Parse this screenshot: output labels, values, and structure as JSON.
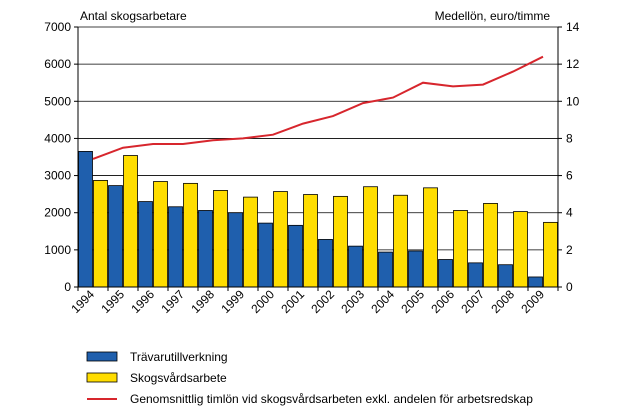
{
  "chart_data": {
    "type": "bar",
    "categories": [
      "1994",
      "1995",
      "1996",
      "1997",
      "1998",
      "1999",
      "2000",
      "2001",
      "2002",
      "2003",
      "2004",
      "2005",
      "2006",
      "2007",
      "2008",
      "2009"
    ],
    "series": [
      {
        "name": "Trävarutillverkning",
        "chart": "bar",
        "axis": "left",
        "color": "#1f5fad",
        "values": [
          3650,
          2730,
          2300,
          2160,
          2060,
          2000,
          1720,
          1660,
          1280,
          1100,
          940,
          970,
          740,
          650,
          600,
          270
        ]
      },
      {
        "name": "Skogsvårdsarbete",
        "chart": "bar",
        "axis": "left",
        "color": "#ffdd00",
        "values": [
          2870,
          3540,
          2840,
          2790,
          2600,
          2420,
          2570,
          2490,
          2440,
          2700,
          2470,
          2670,
          2060,
          2250,
          2030,
          1740
        ]
      },
      {
        "name": "Genomsnittlig timlön vid skogsvårdsarbeten exkl. andelen för arbetsredskap",
        "chart": "line",
        "axis": "right",
        "color": "#d7262d",
        "values": [
          6.9,
          7.5,
          7.7,
          7.7,
          7.9,
          8.0,
          8.2,
          8.8,
          9.2,
          9.9,
          10.2,
          11.0,
          10.8,
          10.9,
          11.6,
          12.4
        ]
      }
    ],
    "left_axis": {
      "label": "Antal skogsarbetare",
      "ylim": [
        0,
        7000
      ],
      "ticks": [
        "0",
        "1000",
        "2000",
        "3000",
        "4000",
        "5000",
        "6000",
        "7000"
      ]
    },
    "right_axis": {
      "label": "Medellön, euro/timme",
      "ylim": [
        0,
        14
      ],
      "ticks": [
        "0",
        "2",
        "4",
        "6",
        "8",
        "10",
        "12",
        "14"
      ]
    },
    "grid": true,
    "legend_position": "bottom"
  }
}
